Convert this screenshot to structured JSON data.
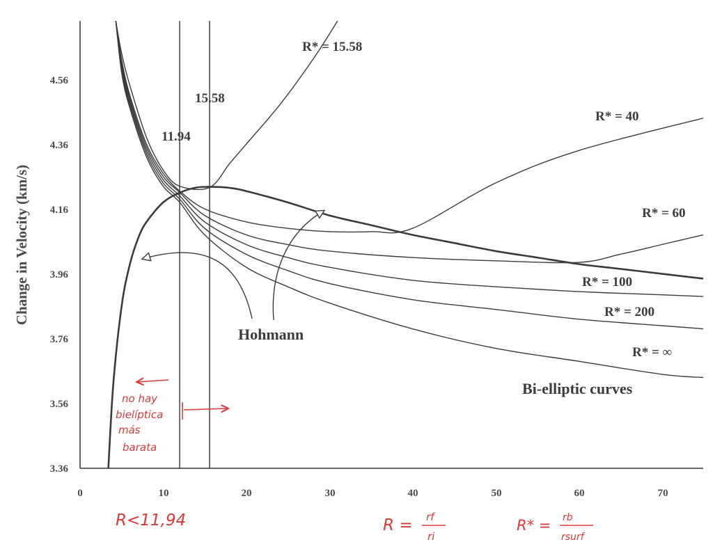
{
  "chart_data": {
    "type": "line",
    "ylabel": "Change in Velocity (km/s)",
    "xlabel": "",
    "xlim": [
      0,
      75
    ],
    "ylim": [
      3.36,
      4.74
    ],
    "x_ticks": [
      "0",
      "10",
      "20",
      "30",
      "40",
      "50",
      "60",
      "70"
    ],
    "y_ticks": [
      "3.36",
      "3.56",
      "3.76",
      "3.96",
      "4.16",
      "4.36",
      "4.56"
    ],
    "vertical_lines": [
      {
        "x": 11.94,
        "label": "11.94"
      },
      {
        "x": 15.58,
        "label": "15.58"
      }
    ],
    "series": [
      {
        "name": "Hohmann",
        "points": [
          [
            3.4,
            3.36
          ],
          [
            4,
            3.62
          ],
          [
            5,
            3.86
          ],
          [
            6,
            3.99
          ],
          [
            7,
            4.07
          ],
          [
            8,
            4.12
          ],
          [
            10,
            4.18
          ],
          [
            12,
            4.21
          ],
          [
            14,
            4.226
          ],
          [
            16,
            4.228
          ],
          [
            18,
            4.225
          ],
          [
            20,
            4.215
          ],
          [
            25,
            4.18
          ],
          [
            30,
            4.14
          ],
          [
            35,
            4.11
          ],
          [
            40,
            4.08
          ],
          [
            45,
            4.055
          ],
          [
            50,
            4.03
          ],
          [
            55,
            4.01
          ],
          [
            60,
            3.99
          ],
          [
            65,
            3.975
          ],
          [
            70,
            3.96
          ],
          [
            75,
            3.945
          ]
        ]
      },
      {
        "name": "R* = 15.58",
        "points": [
          [
            4.3,
            4.74
          ],
          [
            5,
            4.64
          ],
          [
            6,
            4.54
          ],
          [
            8,
            4.38
          ],
          [
            10,
            4.28
          ],
          [
            12,
            4.23
          ],
          [
            15.58,
            4.226
          ],
          [
            18,
            4.3
          ],
          [
            20,
            4.36
          ],
          [
            24,
            4.48
          ],
          [
            28,
            4.62
          ],
          [
            31,
            4.74
          ]
        ]
      },
      {
        "name": "R* = 40",
        "points": [
          [
            4.3,
            4.74
          ],
          [
            5,
            4.62
          ],
          [
            6,
            4.51
          ],
          [
            8,
            4.36
          ],
          [
            10,
            4.27
          ],
          [
            12,
            4.215
          ],
          [
            15,
            4.16
          ],
          [
            20,
            4.12
          ],
          [
            25,
            4.1
          ],
          [
            30,
            4.09
          ],
          [
            35,
            4.09
          ],
          [
            40,
            4.1
          ],
          [
            50,
            4.24
          ],
          [
            60,
            4.34
          ],
          [
            75,
            4.44
          ]
        ]
      },
      {
        "name": "R* = 60",
        "points": [
          [
            4.3,
            4.74
          ],
          [
            5,
            4.61
          ],
          [
            6,
            4.5
          ],
          [
            8,
            4.35
          ],
          [
            10,
            4.26
          ],
          [
            12,
            4.21
          ],
          [
            15,
            4.14
          ],
          [
            20,
            4.08
          ],
          [
            25,
            4.05
          ],
          [
            30,
            4.03
          ],
          [
            40,
            4.01
          ],
          [
            50,
            4.0
          ],
          [
            60,
            3.995
          ],
          [
            65,
            4.02
          ],
          [
            70,
            4.05
          ],
          [
            75,
            4.08
          ]
        ]
      },
      {
        "name": "R* = 100",
        "points": [
          [
            4.3,
            4.74
          ],
          [
            5,
            4.6
          ],
          [
            6,
            4.49
          ],
          [
            8,
            4.34
          ],
          [
            10,
            4.25
          ],
          [
            12,
            4.2
          ],
          [
            15,
            4.12
          ],
          [
            20,
            4.05
          ],
          [
            25,
            4.01
          ],
          [
            30,
            3.98
          ],
          [
            40,
            3.94
          ],
          [
            50,
            3.92
          ],
          [
            60,
            3.905
          ],
          [
            70,
            3.895
          ],
          [
            75,
            3.89
          ]
        ]
      },
      {
        "name": "R* = 200",
        "points": [
          [
            4.3,
            4.74
          ],
          [
            5,
            4.59
          ],
          [
            6,
            4.48
          ],
          [
            8,
            4.33
          ],
          [
            10,
            4.24
          ],
          [
            12,
            4.19
          ],
          [
            15,
            4.1
          ],
          [
            20,
            4.02
          ],
          [
            25,
            3.97
          ],
          [
            30,
            3.93
          ],
          [
            40,
            3.88
          ],
          [
            50,
            3.85
          ],
          [
            60,
            3.82
          ],
          [
            70,
            3.8
          ],
          [
            75,
            3.79
          ]
        ]
      },
      {
        "name": "R* = ∞",
        "points": [
          [
            4.3,
            4.74
          ],
          [
            5,
            4.58
          ],
          [
            6,
            4.47
          ],
          [
            8,
            4.32
          ],
          [
            10,
            4.23
          ],
          [
            12,
            4.18
          ],
          [
            15,
            4.08
          ],
          [
            20,
            3.98
          ],
          [
            25,
            3.92
          ],
          [
            30,
            3.87
          ],
          [
            40,
            3.79
          ],
          [
            50,
            3.73
          ],
          [
            60,
            3.69
          ],
          [
            70,
            3.65
          ],
          [
            75,
            3.64
          ]
        ]
      }
    ]
  },
  "labels": {
    "r_15_58": "R* = 15.58",
    "r_40": "R* = 40",
    "r_60": "R* = 60",
    "r_100": "R* = 100",
    "r_200": "R* = 200",
    "r_inf": "R* = ∞",
    "hohmann": "Hohmann",
    "bi_elliptic": "Bi-elliptic curves",
    "v_11_94": "11.94",
    "v_15_58": "15.58"
  },
  "handwritten": {
    "note_line1": "no hay",
    "note_line2": "bielíptica",
    "note_line3": "más",
    "note_line4": "barata",
    "bottom_left": "R<11,94",
    "formula_r": "R =",
    "formula_r_num": "rf",
    "formula_r_den": "ri",
    "formula_rstar": "R* =",
    "formula_rstar_num": "rb",
    "formula_rstar_den": "rsurf"
  },
  "colors": {
    "curve": "#3a3a3a",
    "axis": "#333333",
    "handwriting": "#d83a3a"
  }
}
